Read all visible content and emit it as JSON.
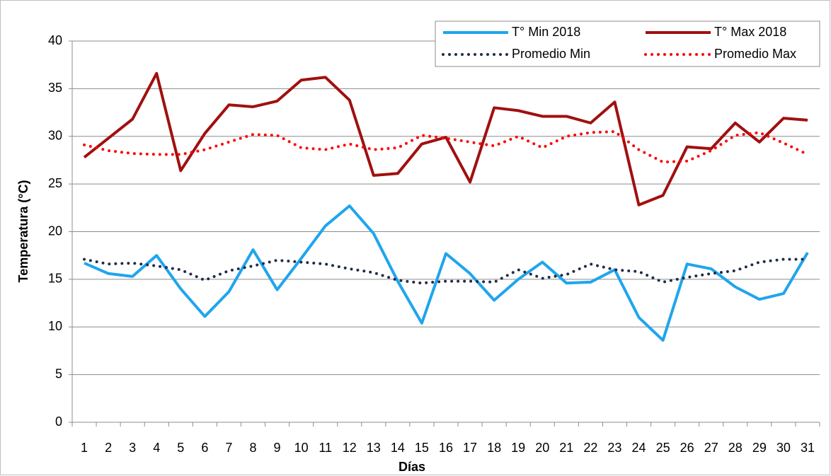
{
  "chart_data": {
    "type": "line",
    "x_label": "Días",
    "y_label": "Temperatura (°C)",
    "categories": [
      "1",
      "2",
      "3",
      "4",
      "5",
      "6",
      "7",
      "8",
      "9",
      "10",
      "11",
      "12",
      "13",
      "14",
      "15",
      "16",
      "17",
      "18",
      "19",
      "20",
      "21",
      "22",
      "23",
      "24",
      "25",
      "26",
      "27",
      "28",
      "29",
      "30",
      "31"
    ],
    "ylim": [
      0,
      40
    ],
    "yticks": [
      0,
      5,
      10,
      15,
      20,
      25,
      30,
      35,
      40
    ],
    "grid": true,
    "legend": "top-right",
    "series": [
      {
        "name": "T° Min 2018",
        "color": "#1fa5ee",
        "style": "solid",
        "values": [
          16.7,
          15.6,
          15.3,
          17.5,
          14.0,
          11.1,
          13.7,
          18.1,
          13.9,
          17.2,
          20.6,
          22.7,
          19.8,
          14.8,
          10.4,
          17.7,
          15.6,
          12.8,
          15.0,
          16.8,
          14.6,
          14.7,
          16.0,
          11.0,
          8.6,
          16.6,
          16.1,
          14.2,
          12.9,
          13.5,
          17.8
        ]
      },
      {
        "name": "T° Max 2018",
        "color": "#a01010",
        "style": "solid",
        "values": [
          27.8,
          29.8,
          31.8,
          36.6,
          26.4,
          30.3,
          33.3,
          33.1,
          33.7,
          35.9,
          36.2,
          33.8,
          25.9,
          26.1,
          29.2,
          29.9,
          25.2,
          33.0,
          32.7,
          32.1,
          32.1,
          31.4,
          33.6,
          22.8,
          23.8,
          28.9,
          28.7,
          31.4,
          29.4,
          31.9,
          31.7
        ]
      },
      {
        "name": "Promedio Min",
        "color": "#1f2b48",
        "style": "dotted",
        "values": [
          17.1,
          16.6,
          16.7,
          16.4,
          16.0,
          14.9,
          15.9,
          16.4,
          17.0,
          16.8,
          16.6,
          16.1,
          15.7,
          14.9,
          14.6,
          14.8,
          14.8,
          14.7,
          16.0,
          15.1,
          15.5,
          16.6,
          16.0,
          15.8,
          14.7,
          15.2,
          15.6,
          15.9,
          16.8,
          17.1,
          17.1
        ]
      },
      {
        "name": "Promedio Max",
        "color": "#ff0000",
        "style": "dotted",
        "values": [
          29.1,
          28.5,
          28.2,
          28.1,
          28.1,
          28.6,
          29.4,
          30.2,
          30.1,
          28.8,
          28.6,
          29.2,
          28.6,
          28.8,
          30.1,
          29.8,
          29.4,
          29.0,
          30.0,
          28.8,
          30.0,
          30.4,
          30.5,
          28.6,
          27.3,
          27.4,
          28.5,
          30.1,
          30.4,
          29.3,
          28.1
        ]
      }
    ]
  }
}
